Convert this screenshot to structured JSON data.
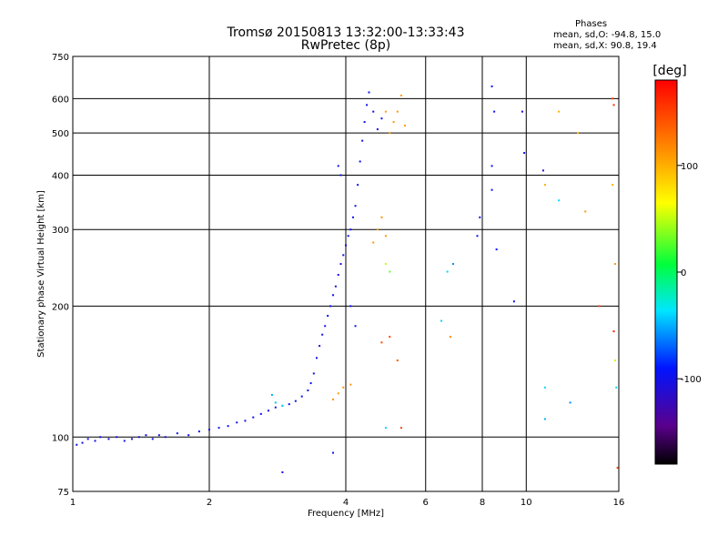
{
  "chart_data": {
    "type": "scatter",
    "title": "Tromsø 20150813 13:32:00-13:33:43",
    "subtitle": "RwPretec (8p)",
    "info": {
      "heading": "Phases",
      "line_o": "mean, sd,O: -94.8, 15.0",
      "line_x": "mean, sd,X:  90.8, 19.4"
    },
    "xlabel": "Frequency [MHz]",
    "ylabel": "Stationary phase Virtual Height [km]",
    "x_scale": "log",
    "y_scale": "log",
    "xlim": [
      1,
      16
    ],
    "ylim": [
      75,
      750
    ],
    "x_ticks": [
      {
        "value": 1,
        "label": "1"
      },
      {
        "value": 2,
        "label": "2"
      },
      {
        "value": 4,
        "label": "4"
      },
      {
        "value": 6,
        "label": "6"
      },
      {
        "value": 8,
        "label": "8"
      },
      {
        "value": 10,
        "label": "10"
      },
      {
        "value": 16,
        "label": "16"
      }
    ],
    "y_ticks": [
      {
        "value": 75,
        "label": "75"
      },
      {
        "value": 100,
        "label": "100"
      },
      {
        "value": 200,
        "label": "200"
      },
      {
        "value": 300,
        "label": "300"
      },
      {
        "value": 400,
        "label": "400"
      },
      {
        "value": 500,
        "label": "500"
      },
      {
        "value": 600,
        "label": "600"
      },
      {
        "value": 750,
        "label": "750"
      }
    ],
    "grid": true,
    "colorbar": {
      "label": "[deg]",
      "min": -180,
      "max": 180,
      "ticks": [
        {
          "value": 100,
          "label": "100"
        },
        {
          "value": 0,
          "label": "0"
        },
        {
          "value": -100,
          "label": "-100"
        }
      ]
    },
    "series": [
      {
        "points": [
          [
            1.02,
            96,
            -100
          ],
          [
            1.05,
            97,
            -98
          ],
          [
            1.08,
            99,
            -102
          ],
          [
            1.12,
            98,
            -100
          ],
          [
            1.15,
            100,
            -99
          ],
          [
            1.2,
            99,
            -101
          ],
          [
            1.25,
            100,
            -100
          ],
          [
            1.3,
            98,
            -97
          ],
          [
            1.35,
            99,
            -103
          ],
          [
            1.4,
            100,
            -100
          ],
          [
            1.45,
            101,
            -100
          ],
          [
            1.5,
            99,
            -98
          ],
          [
            1.55,
            101,
            -102
          ],
          [
            1.6,
            100,
            -100
          ],
          [
            1.7,
            102,
            -100
          ],
          [
            1.8,
            101,
            -99
          ],
          [
            1.9,
            103,
            -101
          ],
          [
            2.0,
            104,
            -100
          ],
          [
            2.1,
            105,
            -100
          ],
          [
            2.2,
            106,
            -98
          ],
          [
            2.3,
            108,
            -102
          ],
          [
            2.4,
            109,
            -100
          ],
          [
            2.5,
            111,
            -100
          ],
          [
            2.6,
            113,
            -99
          ],
          [
            2.7,
            115,
            -101
          ],
          [
            2.8,
            117,
            -100
          ],
          [
            2.9,
            118,
            -100
          ],
          [
            3.0,
            119,
            -98
          ],
          [
            3.1,
            121,
            -102
          ],
          [
            3.2,
            124,
            -100
          ],
          [
            3.3,
            128,
            -100
          ],
          [
            3.35,
            133,
            -99
          ],
          [
            3.4,
            140,
            -101
          ],
          [
            3.45,
            152,
            -100
          ],
          [
            3.5,
            162,
            -100
          ],
          [
            3.55,
            172,
            -98
          ],
          [
            3.6,
            180,
            -102
          ],
          [
            3.65,
            190,
            -100
          ],
          [
            3.7,
            200,
            -100
          ],
          [
            3.75,
            212,
            -99
          ],
          [
            3.8,
            222,
            -101
          ],
          [
            3.85,
            236,
            -100
          ],
          [
            3.9,
            250,
            -100
          ],
          [
            3.95,
            262,
            -98
          ],
          [
            4.0,
            276,
            -102
          ],
          [
            4.05,
            290,
            -100
          ],
          [
            4.1,
            300,
            -100
          ],
          [
            4.15,
            320,
            -99
          ],
          [
            4.2,
            340,
            -101
          ],
          [
            4.25,
            380,
            -100
          ],
          [
            4.3,
            430,
            -100
          ],
          [
            4.35,
            480,
            -98
          ],
          [
            4.4,
            530,
            -102
          ],
          [
            4.45,
            580,
            -100
          ],
          [
            4.5,
            620,
            -100
          ],
          [
            4.6,
            560,
            -99
          ],
          [
            4.7,
            510,
            -101
          ],
          [
            4.8,
            540,
            -100
          ],
          [
            3.85,
            420,
            -100
          ],
          [
            3.9,
            400,
            -98
          ],
          [
            4.1,
            200,
            -100
          ],
          [
            4.2,
            180,
            -102
          ],
          [
            2.9,
            83,
            -100
          ],
          [
            3.75,
            92,
            -99
          ]
        ]
      },
      {
        "points": [
          [
            2.75,
            125,
            -50
          ],
          [
            2.8,
            120,
            -45
          ],
          [
            2.9,
            118,
            -40
          ],
          [
            3.75,
            122,
            110
          ],
          [
            3.85,
            126,
            108
          ],
          [
            3.95,
            130,
            112
          ],
          [
            4.1,
            132,
            110
          ],
          [
            4.6,
            280,
            110
          ],
          [
            4.7,
            300,
            108
          ],
          [
            4.8,
            320,
            112
          ],
          [
            4.9,
            290,
            110
          ],
          [
            5.0,
            500,
            110
          ],
          [
            5.1,
            530,
            108
          ],
          [
            5.2,
            560,
            112
          ],
          [
            5.3,
            610,
            110
          ],
          [
            5.4,
            520,
            110
          ],
          [
            4.9,
            560,
            108
          ],
          [
            5.0,
            170,
            150
          ],
          [
            4.8,
            165,
            145
          ],
          [
            5.2,
            150,
            140
          ],
          [
            4.9,
            250,
            50
          ],
          [
            5.0,
            240,
            30
          ],
          [
            6.5,
            185,
            -40
          ],
          [
            6.8,
            170,
            120
          ],
          [
            6.7,
            240,
            -40
          ],
          [
            6.9,
            250,
            -60
          ],
          [
            7.8,
            290,
            -100
          ],
          [
            7.9,
            320,
            -100
          ],
          [
            8.4,
            640,
            -100
          ],
          [
            8.5,
            560,
            -100
          ],
          [
            8.4,
            420,
            -100
          ],
          [
            8.4,
            370,
            -100
          ],
          [
            8.6,
            270,
            -90
          ],
          [
            9.4,
            205,
            -100
          ],
          [
            9.8,
            560,
            -110
          ],
          [
            9.9,
            450,
            -100
          ],
          [
            10.9,
            410,
            -110
          ],
          [
            11.0,
            380,
            100
          ],
          [
            11.0,
            130,
            -40
          ],
          [
            11.8,
            560,
            100
          ],
          [
            11.8,
            350,
            -40
          ],
          [
            11.0,
            110,
            -50
          ],
          [
            12.5,
            120,
            -60
          ],
          [
            13.0,
            500,
            100
          ],
          [
            13.5,
            330,
            110
          ],
          [
            14.5,
            200,
            150
          ],
          [
            15.5,
            600,
            150
          ],
          [
            15.6,
            580,
            160
          ],
          [
            15.5,
            380,
            100
          ],
          [
            15.7,
            250,
            110
          ],
          [
            15.6,
            175,
            170
          ],
          [
            15.7,
            150,
            50
          ],
          [
            15.8,
            130,
            -40
          ],
          [
            15.9,
            85,
            150
          ],
          [
            5.3,
            105,
            150
          ],
          [
            4.9,
            105,
            -40
          ]
        ]
      }
    ]
  }
}
